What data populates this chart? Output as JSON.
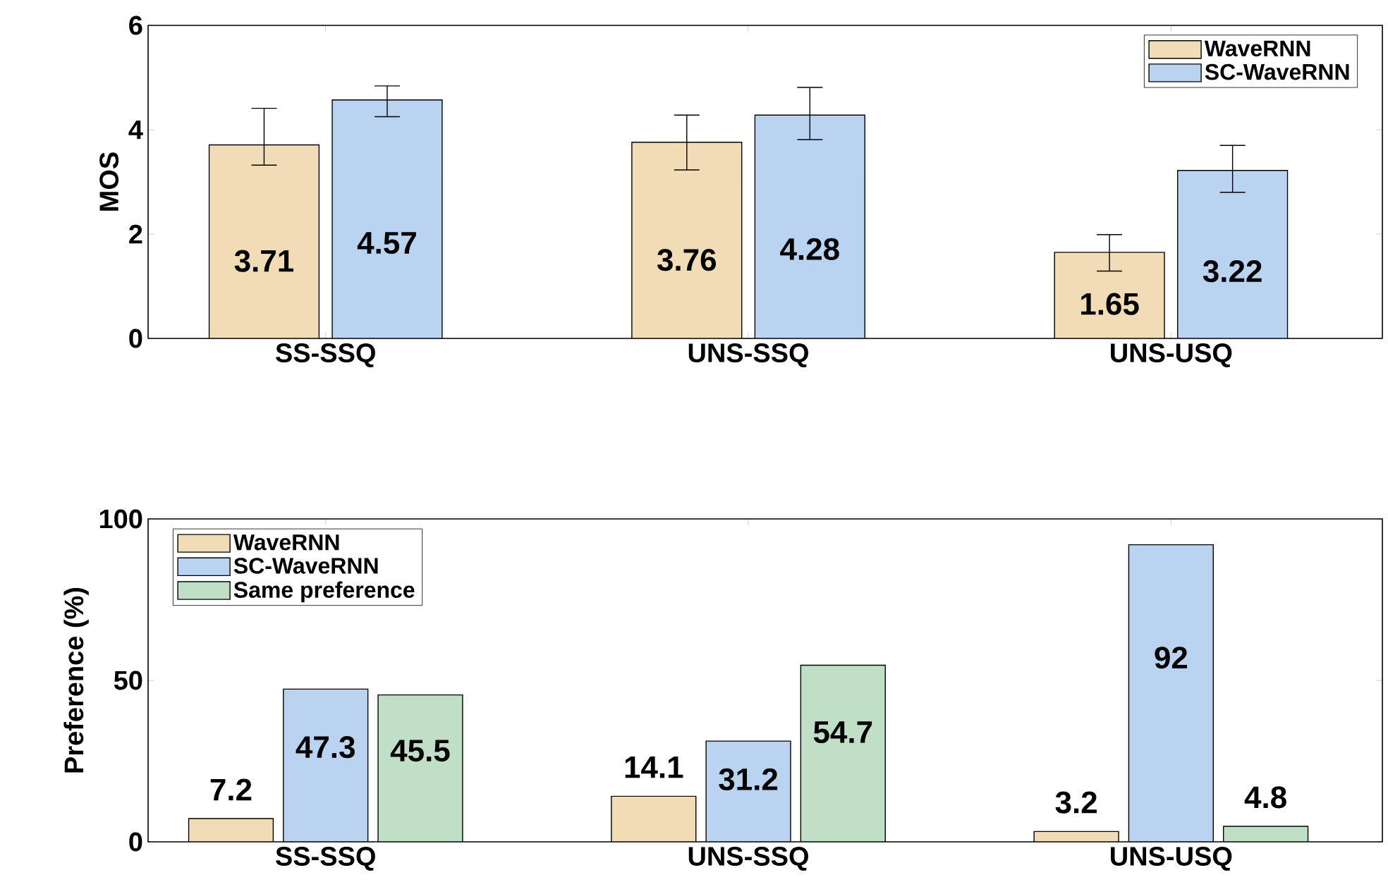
{
  "chart_data": [
    {
      "type": "bar",
      "ylabel": "MOS",
      "categories": [
        "SS-SSQ",
        "UNS-SSQ",
        "UNS-USQ"
      ],
      "ylim": [
        0,
        6
      ],
      "yticks": [
        0,
        2,
        4,
        6
      ],
      "legend": "top right",
      "data_labels": true,
      "grid": false,
      "series": [
        {
          "name": "WaveRNN",
          "color": "#f2dcb5",
          "values": [
            3.71,
            3.76,
            1.65
          ],
          "errors": [
            [
              3.32,
              4.41
            ],
            [
              3.23,
              4.28
            ],
            [
              1.29,
              1.99
            ]
          ]
        },
        {
          "name": "SC-WaveRNN",
          "color": "#b9d3f0",
          "values": [
            4.57,
            4.28,
            3.22
          ],
          "errors": [
            [
              4.25,
              4.84
            ],
            [
              3.81,
              4.81
            ],
            [
              2.8,
              3.7
            ]
          ]
        }
      ]
    },
    {
      "type": "bar",
      "ylabel": "Preference (%)",
      "categories": [
        "SS-SSQ",
        "UNS-SSQ",
        "UNS-USQ"
      ],
      "ylim": [
        0,
        100
      ],
      "yticks": [
        0,
        50,
        100
      ],
      "legend": "top left",
      "data_labels": true,
      "grid": false,
      "series": [
        {
          "name": "WaveRNN",
          "color": "#f2dcb5",
          "values": [
            7.2,
            14.1,
            3.2
          ]
        },
        {
          "name": "SC-WaveRNN",
          "color": "#b9d3f0",
          "values": [
            47.3,
            31.2,
            92
          ]
        },
        {
          "name": "Same preference",
          "color": "#bfdfc6",
          "values": [
            45.5,
            54.7,
            4.8
          ]
        }
      ]
    }
  ]
}
